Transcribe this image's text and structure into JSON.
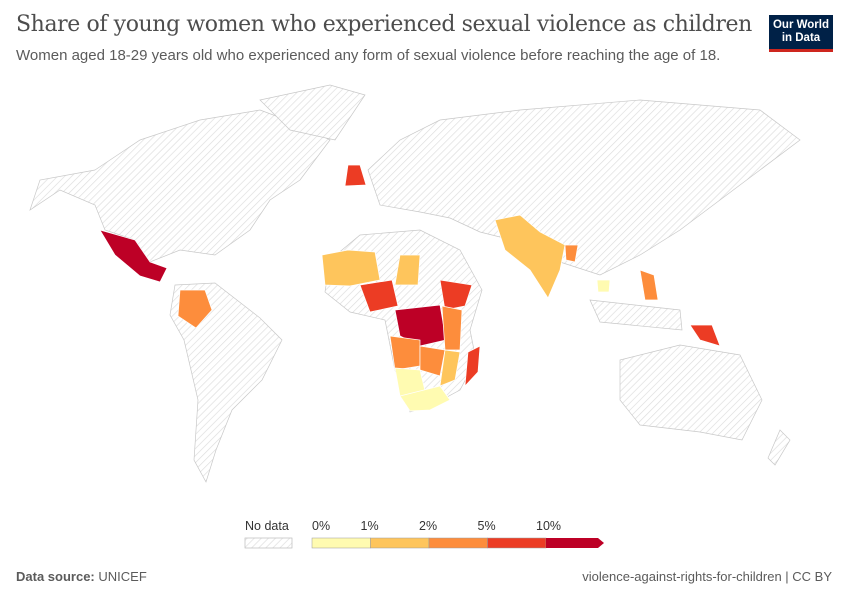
{
  "header": {
    "title": "Share of young women who experienced sexual violence as children",
    "subtitle": "Women aged 18-29 years old who experienced any form of sexual violence before reaching the age of 18.",
    "logo_line1": "Our World",
    "logo_line2": "in Data"
  },
  "chart_data": {
    "type": "choropleth",
    "title": "Share of young women who experienced sexual violence as children",
    "legend": {
      "no_data_label": "No data",
      "no_data_style": "hatched light gray",
      "bins": [
        {
          "label": "0%",
          "color": "#fffbb1"
        },
        {
          "label": "1%",
          "color": "#fec55c"
        },
        {
          "label": "2%",
          "color": "#fd8d3c"
        },
        {
          "label": "5%",
          "color": "#ec3c24"
        },
        {
          "label": "10%",
          "color": "#bd0026"
        }
      ],
      "open_ended_top": true
    },
    "regions": [
      {
        "id": "mexico",
        "bin": 4
      },
      {
        "id": "colombia",
        "bin": 2
      },
      {
        "id": "united-kingdom",
        "bin": 3
      },
      {
        "id": "mali",
        "bin": 1
      },
      {
        "id": "nigeria",
        "bin": 3
      },
      {
        "id": "sudan",
        "bin": 1
      },
      {
        "id": "dr-congo",
        "bin": 4
      },
      {
        "id": "ethiopia",
        "bin": 3
      },
      {
        "id": "kenya-tanzania",
        "bin": 2
      },
      {
        "id": "angola",
        "bin": 2
      },
      {
        "id": "zambia-zimbabwe",
        "bin": 2
      },
      {
        "id": "mozambique",
        "bin": 1
      },
      {
        "id": "namibia-botswana",
        "bin": 0
      },
      {
        "id": "south-africa",
        "bin": 0
      },
      {
        "id": "madagascar",
        "bin": 3
      },
      {
        "id": "india-pakistan",
        "bin": 1
      },
      {
        "id": "bangladesh",
        "bin": 2
      },
      {
        "id": "cambodia",
        "bin": 0
      },
      {
        "id": "philippines",
        "bin": 2
      },
      {
        "id": "papua-new-guinea",
        "bin": 3
      }
    ]
  },
  "footer": {
    "source_label": "Data source:",
    "source": "UNICEF",
    "slug_license": "violence-against-rights-for-children | CC BY"
  }
}
